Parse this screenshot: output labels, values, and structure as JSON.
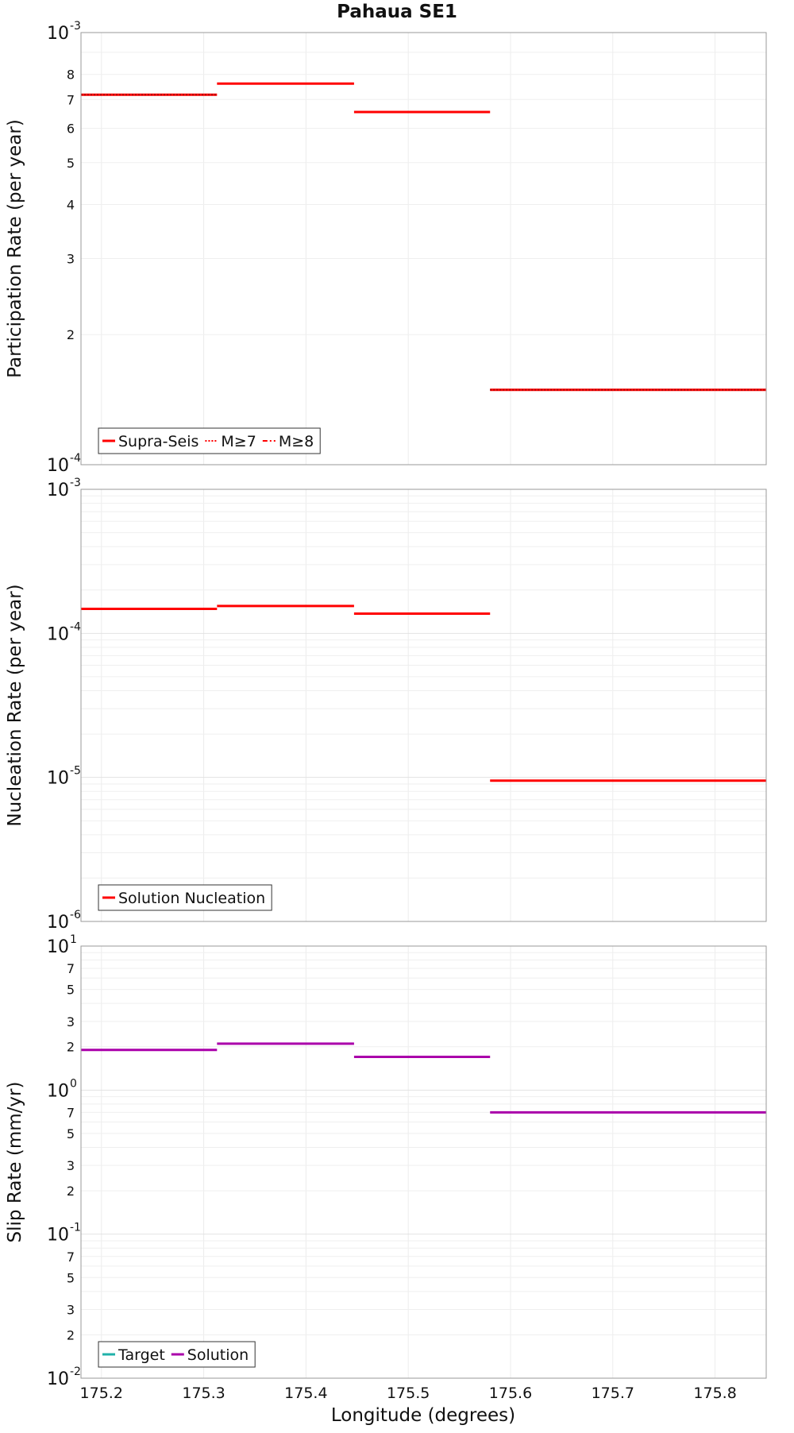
{
  "chart_data": {
    "type": "line",
    "title": "Pahaua SE1",
    "xlabel": "Longitude (degrees)",
    "xlim": [
      175.18,
      175.85
    ],
    "x_ticks": [
      175.2,
      175.3,
      175.4,
      175.5,
      175.6,
      175.7,
      175.8
    ],
    "x_tick_labels": [
      "175.2",
      "175.3",
      "175.4",
      "175.5",
      "175.6",
      "175.7",
      "175.8"
    ],
    "grid": true,
    "panels": [
      {
        "ylabel": "Participation Rate (per year)",
        "yscale": "log",
        "ylim": [
          0.0001,
          0.001
        ],
        "major_ticks": [
          {
            "value": 0.0001,
            "base": "10",
            "exp": "-4"
          },
          {
            "value": 0.001,
            "base": "10",
            "exp": "-3"
          }
        ],
        "minor_labeled_ticks": [
          {
            "value": 0.0002,
            "label": "2"
          },
          {
            "value": 0.0003,
            "label": "3"
          },
          {
            "value": 0.0004,
            "label": "4"
          },
          {
            "value": 0.0005,
            "label": "5"
          },
          {
            "value": 0.0006,
            "label": "6"
          },
          {
            "value": 0.0007,
            "label": "7"
          },
          {
            "value": 0.0008,
            "label": "8"
          }
        ],
        "legend": {
          "position": "bottom-left",
          "entries": [
            {
              "label": "Supra-Seis",
              "color": "#ff0000",
              "style": "solid"
            },
            {
              "label": "M≥7",
              "color": "#ff0000",
              "style": "dotted"
            },
            {
              "label": "M≥8",
              "color": "#ff0000",
              "style": "dashdot"
            }
          ]
        },
        "series": [
          {
            "name": "Supra-Seis",
            "color": "#ff0000",
            "style": "solid",
            "segments": [
              {
                "x": [
                  175.18,
                  175.313
                ],
                "y": 0.000718
              },
              {
                "x": [
                  175.313,
                  175.447
                ],
                "y": 0.000762
              },
              {
                "x": [
                  175.447,
                  175.58
                ],
                "y": 0.000655
              },
              {
                "x": [
                  175.58,
                  175.85
                ],
                "y": 0.000149
              }
            ]
          },
          {
            "name": "M≥7",
            "color": "#ff0000",
            "style": "dotted",
            "segments": [
              {
                "x": [
                  175.18,
                  175.313
                ],
                "y": 0.000718
              },
              {
                "x": [
                  175.58,
                  175.85
                ],
                "y": 0.000149
              }
            ]
          }
        ]
      },
      {
        "ylabel": "Nucleation Rate (per year)",
        "yscale": "log",
        "ylim": [
          1e-06,
          0.001
        ],
        "major_ticks": [
          {
            "value": 1e-06,
            "base": "10",
            "exp": "-6"
          },
          {
            "value": 1e-05,
            "base": "10",
            "exp": "-5"
          },
          {
            "value": 0.0001,
            "base": "10",
            "exp": "-4"
          },
          {
            "value": 0.001,
            "base": "10",
            "exp": "-3"
          }
        ],
        "minor_labeled_ticks": [],
        "legend": {
          "position": "bottom-left",
          "entries": [
            {
              "label": "Solution Nucleation",
              "color": "#ff0000",
              "style": "solid"
            }
          ]
        },
        "series": [
          {
            "name": "Solution Nucleation",
            "color": "#ff0000",
            "style": "solid",
            "segments": [
              {
                "x": [
                  175.18,
                  175.313
                ],
                "y": 0.000148
              },
              {
                "x": [
                  175.313,
                  175.447
                ],
                "y": 0.000155
              },
              {
                "x": [
                  175.447,
                  175.58
                ],
                "y": 0.000137
              },
              {
                "x": [
                  175.58,
                  175.85
                ],
                "y": 9.5e-06
              }
            ]
          }
        ]
      },
      {
        "ylabel": "Slip Rate (mm/yr)",
        "yscale": "log",
        "ylim": [
          0.01,
          10
        ],
        "major_ticks": [
          {
            "value": 0.01,
            "base": "10",
            "exp": "-2"
          },
          {
            "value": 0.1,
            "base": "10",
            "exp": "-1"
          },
          {
            "value": 1,
            "base": "10",
            "exp": "0"
          },
          {
            "value": 10,
            "base": "10",
            "exp": "1"
          }
        ],
        "minor_labeled_ticks": [
          {
            "value": 0.02,
            "label": "2"
          },
          {
            "value": 0.03,
            "label": "3"
          },
          {
            "value": 0.05,
            "label": "5"
          },
          {
            "value": 0.07,
            "label": "7"
          },
          {
            "value": 0.2,
            "label": "2"
          },
          {
            "value": 0.3,
            "label": "3"
          },
          {
            "value": 0.5,
            "label": "5"
          },
          {
            "value": 0.7,
            "label": "7"
          },
          {
            "value": 2,
            "label": "2"
          },
          {
            "value": 3,
            "label": "3"
          },
          {
            "value": 5,
            "label": "5"
          },
          {
            "value": 7,
            "label": "7"
          }
        ],
        "legend": {
          "position": "bottom-left",
          "entries": [
            {
              "label": "Target",
              "color": "#20b2aa",
              "style": "solid"
            },
            {
              "label": "Solution",
              "color": "#aa00aa",
              "style": "solid"
            }
          ]
        },
        "series": [
          {
            "name": "Solution",
            "color": "#aa00aa",
            "style": "solid",
            "segments": [
              {
                "x": [
                  175.18,
                  175.313
                ],
                "y": 1.9
              },
              {
                "x": [
                  175.313,
                  175.447
                ],
                "y": 2.1
              },
              {
                "x": [
                  175.447,
                  175.58
                ],
                "y": 1.7
              },
              {
                "x": [
                  175.58,
                  175.85
                ],
                "y": 0.7
              }
            ]
          }
        ]
      }
    ]
  }
}
